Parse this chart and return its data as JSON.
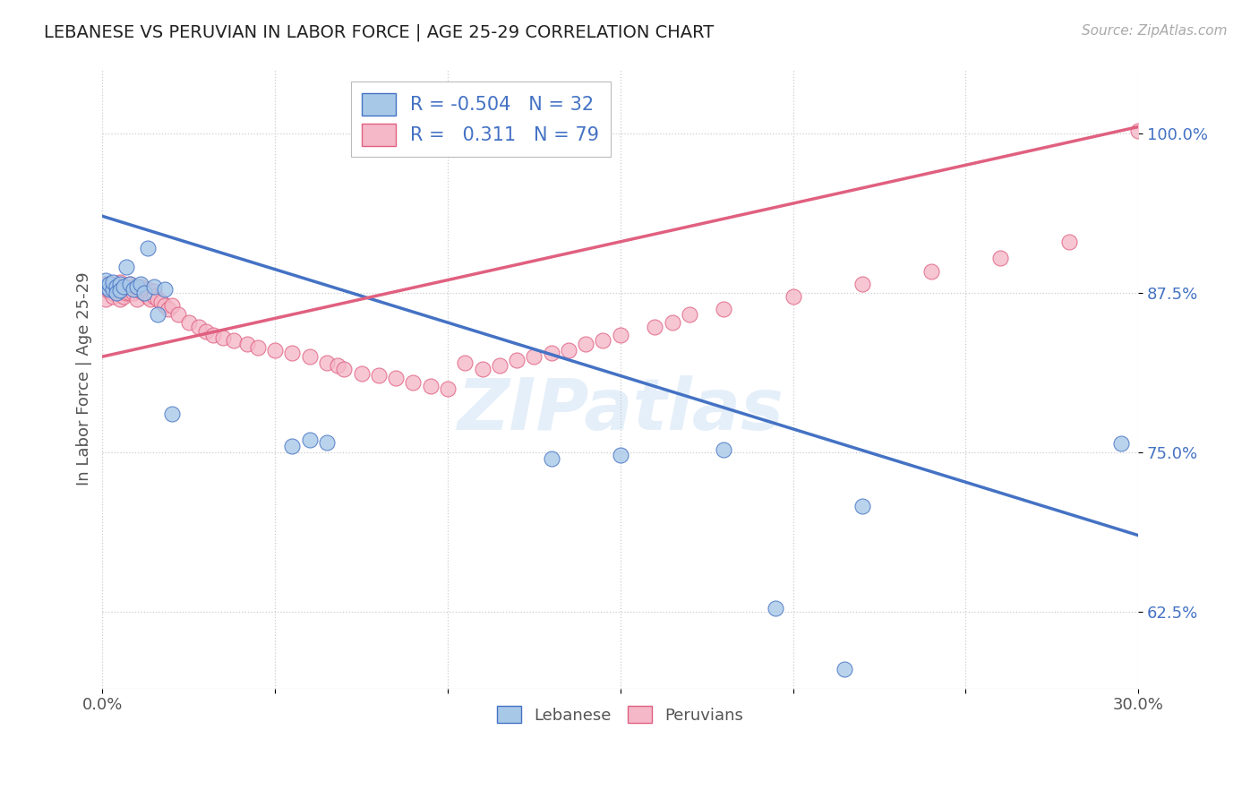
{
  "title": "LEBANESE VS PERUVIAN IN LABOR FORCE | AGE 25-29 CORRELATION CHART",
  "source": "Source: ZipAtlas.com",
  "ylabel": "In Labor Force | Age 25-29",
  "xlim": [
    0.0,
    0.3
  ],
  "ylim": [
    0.565,
    1.05
  ],
  "xticks": [
    0.0,
    0.05,
    0.1,
    0.15,
    0.2,
    0.25,
    0.3
  ],
  "xticklabels": [
    "0.0%",
    "",
    "",
    "",
    "",
    "",
    "30.0%"
  ],
  "yticks": [
    0.625,
    0.75,
    0.875,
    1.0
  ],
  "yticklabels": [
    "62.5%",
    "75.0%",
    "87.5%",
    "100.0%"
  ],
  "legend_r_blue": "-0.504",
  "legend_n_blue": "32",
  "legend_r_pink": "0.311",
  "legend_n_pink": "79",
  "blue_color": "#a8c8e8",
  "pink_color": "#f4b8c8",
  "blue_line_color": "#4472c4",
  "pink_line_color": "#e06080",
  "watermark": "ZIPatlas",
  "blue_line_x0": 0.0,
  "blue_line_y0": 0.935,
  "blue_line_x1": 0.3,
  "blue_line_y1": 0.685,
  "pink_line_x0": 0.0,
  "pink_line_y0": 0.825,
  "pink_line_x1": 0.3,
  "pink_line_y1": 1.005,
  "blue_points_x": [
    0.001,
    0.001,
    0.002,
    0.002,
    0.003,
    0.003,
    0.004,
    0.004,
    0.005,
    0.005,
    0.006,
    0.007,
    0.008,
    0.009,
    0.01,
    0.011,
    0.012,
    0.013,
    0.015,
    0.016,
    0.018,
    0.02,
    0.055,
    0.06,
    0.065,
    0.13,
    0.15,
    0.18,
    0.195,
    0.215,
    0.22,
    0.295
  ],
  "blue_points_y": [
    0.88,
    0.885,
    0.878,
    0.882,
    0.878,
    0.883,
    0.88,
    0.875,
    0.882,
    0.877,
    0.88,
    0.895,
    0.882,
    0.878,
    0.88,
    0.882,
    0.875,
    0.91,
    0.88,
    0.858,
    0.878,
    0.78,
    0.755,
    0.76,
    0.758,
    0.745,
    0.748,
    0.752,
    0.628,
    0.58,
    0.708,
    0.757
  ],
  "pink_points_x": [
    0.001,
    0.001,
    0.001,
    0.002,
    0.002,
    0.003,
    0.003,
    0.003,
    0.004,
    0.004,
    0.004,
    0.005,
    0.005,
    0.005,
    0.006,
    0.006,
    0.006,
    0.007,
    0.007,
    0.008,
    0.008,
    0.009,
    0.009,
    0.01,
    0.01,
    0.011,
    0.011,
    0.012,
    0.013,
    0.013,
    0.014,
    0.015,
    0.015,
    0.016,
    0.017,
    0.018,
    0.019,
    0.02,
    0.022,
    0.025,
    0.028,
    0.03,
    0.032,
    0.035,
    0.038,
    0.042,
    0.045,
    0.05,
    0.055,
    0.06,
    0.065,
    0.068,
    0.07,
    0.075,
    0.08,
    0.085,
    0.09,
    0.095,
    0.1,
    0.105,
    0.11,
    0.115,
    0.12,
    0.125,
    0.13,
    0.135,
    0.14,
    0.145,
    0.15,
    0.16,
    0.165,
    0.17,
    0.18,
    0.2,
    0.22,
    0.24,
    0.26,
    0.28,
    0.3
  ],
  "pink_points_y": [
    0.878,
    0.882,
    0.87,
    0.876,
    0.882,
    0.875,
    0.88,
    0.872,
    0.878,
    0.882,
    0.875,
    0.878,
    0.883,
    0.87,
    0.88,
    0.876,
    0.872,
    0.88,
    0.875,
    0.882,
    0.875,
    0.88,
    0.875,
    0.878,
    0.87,
    0.876,
    0.88,
    0.875,
    0.872,
    0.878,
    0.87,
    0.876,
    0.872,
    0.87,
    0.868,
    0.865,
    0.862,
    0.865,
    0.858,
    0.852,
    0.848,
    0.845,
    0.842,
    0.84,
    0.838,
    0.835,
    0.832,
    0.83,
    0.828,
    0.825,
    0.82,
    0.818,
    0.815,
    0.812,
    0.81,
    0.808,
    0.805,
    0.802,
    0.8,
    0.82,
    0.815,
    0.818,
    0.822,
    0.825,
    0.828,
    0.83,
    0.835,
    0.838,
    0.842,
    0.848,
    0.852,
    0.858,
    0.862,
    0.872,
    0.882,
    0.892,
    0.902,
    0.915,
    1.002
  ]
}
